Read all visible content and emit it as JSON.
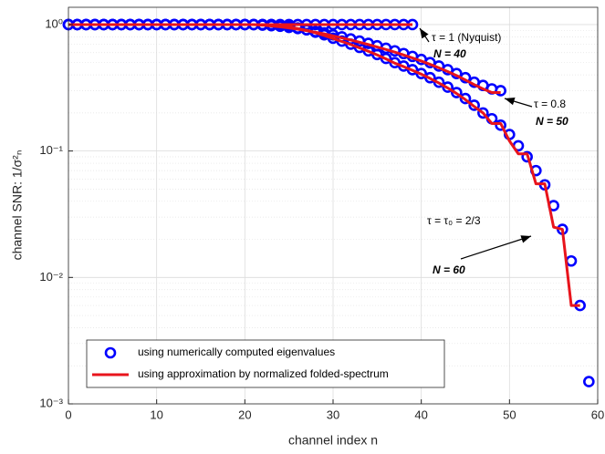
{
  "chart_data": {
    "type": "line",
    "log_y": true,
    "grid": true,
    "minor_grid": true,
    "legend_position": "lower left",
    "xlabel": "channel index n",
    "ylabel": "channel SNR: 1/σ²ₙ",
    "xlim": [
      0,
      60
    ],
    "xticks": [
      0,
      10,
      20,
      30,
      40,
      50,
      60
    ],
    "ylim": [
      0.001,
      1.37
    ],
    "yticks": [
      {
        "value": 0.001,
        "label": "10⁻³"
      },
      {
        "value": 0.01,
        "label": "10⁻²"
      },
      {
        "value": 0.1,
        "label": "10⁻¹"
      },
      {
        "value": 1,
        "label": "10⁰"
      }
    ],
    "x": [
      0,
      1,
      2,
      3,
      4,
      5,
      6,
      7,
      8,
      9,
      10,
      11,
      12,
      13,
      14,
      15,
      16,
      17,
      18,
      19,
      20,
      21,
      22,
      23,
      24,
      25,
      26,
      27,
      28,
      29,
      30,
      31,
      32,
      33,
      34,
      35,
      36,
      37,
      38,
      39,
      40,
      41,
      42,
      43,
      44,
      45,
      46,
      47,
      48,
      49,
      50,
      51,
      52,
      53,
      54,
      55,
      56,
      57,
      58,
      59
    ],
    "series": [
      {
        "name": "using numerically computed eigenvalues",
        "style": "circle",
        "color": "#0000ff",
        "values": [
          1,
          1,
          1,
          1,
          1,
          1,
          1,
          1,
          1,
          1,
          1,
          1,
          1,
          1,
          1,
          1,
          1,
          1,
          1,
          1,
          1,
          1,
          1,
          1,
          1,
          1,
          1,
          1,
          1,
          1,
          1,
          1,
          1,
          1,
          1,
          1,
          1,
          1,
          1,
          1,
          null,
          null,
          null,
          null,
          null,
          null,
          null,
          null,
          null,
          null,
          null,
          null,
          null,
          null,
          null,
          null,
          null,
          null,
          null,
          null
        ]
      },
      {
        "style": "circle",
        "color": "#0000ff",
        "values": [
          1,
          1,
          1,
          1,
          1,
          1,
          1,
          1,
          1,
          1,
          1,
          1,
          1,
          1,
          1,
          1,
          1,
          1,
          1,
          1,
          1,
          1,
          0.99,
          0.98,
          0.97,
          0.95,
          0.93,
          0.91,
          0.88,
          0.86,
          0.83,
          0.8,
          0.77,
          0.74,
          0.71,
          0.68,
          0.65,
          0.62,
          0.59,
          0.56,
          0.53,
          0.5,
          0.47,
          0.44,
          0.41,
          0.38,
          0.35,
          0.33,
          0.31,
          0.3,
          null,
          null,
          null,
          null,
          null,
          null,
          null,
          null,
          null,
          null
        ]
      },
      {
        "style": "circle",
        "color": "#0000ff",
        "values": [
          1,
          1,
          1,
          1,
          1,
          1,
          1,
          1,
          1,
          1,
          1,
          1,
          1,
          1,
          1,
          1,
          1,
          1,
          1,
          1,
          1,
          1,
          1,
          1,
          0.99,
          0.97,
          0.94,
          0.91,
          0.87,
          0.83,
          0.78,
          0.74,
          0.7,
          0.66,
          0.62,
          0.58,
          0.54,
          0.5,
          0.47,
          0.44,
          0.41,
          0.38,
          0.35,
          0.32,
          0.29,
          0.26,
          0.23,
          0.2,
          0.18,
          0.16,
          0.135,
          0.11,
          0.09,
          0.07,
          0.054,
          0.037,
          0.024,
          0.0135,
          0.006,
          0.0015
        ]
      },
      {
        "name": "using approximation by normalized folded-spectrum",
        "style": "line",
        "color": "#e8141c",
        "values": [
          1,
          1,
          1,
          1,
          1,
          1,
          1,
          1,
          1,
          1,
          1,
          1,
          1,
          1,
          1,
          1,
          1,
          1,
          1,
          1,
          1,
          1,
          1,
          1,
          1,
          1,
          1,
          1,
          1,
          1,
          1,
          1,
          1,
          1,
          1,
          1,
          1,
          1,
          1,
          1,
          null,
          null,
          null,
          null,
          null,
          null,
          null,
          null,
          null,
          null,
          null,
          null,
          null,
          null,
          null,
          null,
          null,
          null,
          null,
          null
        ]
      },
      {
        "style": "line",
        "color": "#e8141c",
        "values": [
          1,
          1,
          1,
          1,
          1,
          1,
          1,
          1,
          1,
          1,
          1,
          1,
          1,
          1,
          1,
          1,
          1,
          1,
          1,
          1,
          1,
          1,
          0.99,
          0.975,
          0.96,
          0.94,
          0.92,
          0.895,
          0.87,
          0.845,
          0.815,
          0.785,
          0.755,
          0.725,
          0.695,
          0.665,
          0.635,
          0.605,
          0.575,
          0.545,
          0.515,
          0.485,
          0.455,
          0.425,
          0.395,
          0.365,
          0.335,
          0.31,
          0.29,
          0.29,
          null,
          null,
          null,
          null,
          null,
          null,
          null,
          null,
          null,
          null
        ]
      },
      {
        "style": "line",
        "color": "#e8141c",
        "values": [
          1,
          1,
          1,
          1,
          1,
          1,
          1,
          1,
          1,
          1,
          1,
          1,
          1,
          1,
          1,
          1,
          1,
          1,
          1,
          1,
          1,
          1,
          1,
          1,
          0.985,
          0.96,
          0.93,
          0.9,
          0.86,
          0.82,
          0.775,
          0.735,
          0.695,
          0.655,
          0.615,
          0.575,
          0.535,
          0.495,
          0.465,
          0.435,
          0.405,
          0.375,
          0.345,
          0.315,
          0.285,
          0.255,
          0.225,
          0.2,
          0.165,
          0.165,
          0.12,
          0.095,
          0.095,
          0.055,
          0.055,
          0.025,
          0.024,
          0.006,
          0.006,
          null
        ]
      }
    ],
    "annotations": [
      {
        "text": "τ = 1 (Nyquist)",
        "note": "N = 40"
      },
      {
        "text": "τ = 0.8",
        "note": "N = 50"
      },
      {
        "text": "τ = τ₀ = 2/3",
        "note": "N = 60"
      }
    ]
  }
}
